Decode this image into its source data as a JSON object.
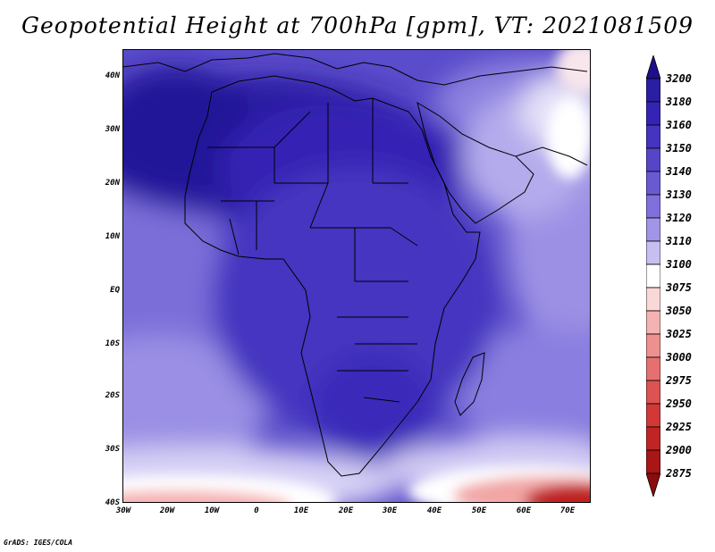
{
  "title": "Geopotential Height at 700hPa [gpm], VT: 2021081509",
  "credit": "GrADS: IGES/COLA",
  "lat_labels": [
    "40N",
    "30N",
    "20N",
    "10N",
    "EQ",
    "10S",
    "20S",
    "30S",
    "40S"
  ],
  "lon_labels": [
    "30W",
    "20W",
    "10W",
    "0",
    "10E",
    "20E",
    "30E",
    "40E",
    "50E",
    "60E",
    "70E"
  ],
  "colorbar": {
    "levels": [
      "3200",
      "3180",
      "3160",
      "3150",
      "3140",
      "3130",
      "3120",
      "3110",
      "3100",
      "3075",
      "3050",
      "3025",
      "3000",
      "2975",
      "2950",
      "2925",
      "2900",
      "2875"
    ],
    "colors": [
      "#1e0f8c",
      "#2a1ea3",
      "#3524b4",
      "#4434c0",
      "#5645c8",
      "#6a5ad2",
      "#8070dc",
      "#a095e6",
      "#c6bff0",
      "#ffffff",
      "#fbd8d8",
      "#f5b2b2",
      "#ee9090",
      "#e67070",
      "#dd5252",
      "#d23838",
      "#c02424",
      "#a81616",
      "#8c0c0c"
    ]
  }
}
